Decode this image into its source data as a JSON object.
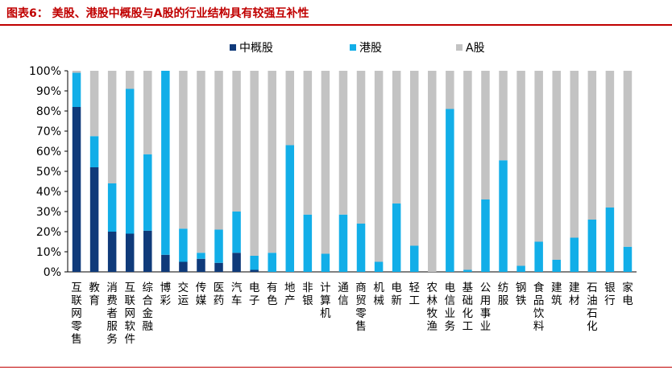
{
  "title": "图表6：  美股、港股中概股与A股的行业结构具有较强互补性",
  "colors": {
    "title": "#c00000",
    "cn_us": "#0f3a7a",
    "hk": "#12aee8",
    "a": "#c3c3c3"
  },
  "chart_data": {
    "type": "bar",
    "stacked": true,
    "ylim": [
      0,
      100
    ],
    "yticks": [
      "0%",
      "10%",
      "20%",
      "30%",
      "40%",
      "50%",
      "60%",
      "70%",
      "80%",
      "90%",
      "100%"
    ],
    "legend_position": "top",
    "categories": [
      "互联网零售",
      "教育",
      "消费者服务",
      "互联网软件",
      "综合金融",
      "博彩",
      "交运",
      "传媒",
      "医药",
      "汽车",
      "电子",
      "有色",
      "地产",
      "非银",
      "计算机",
      "通信",
      "商贸零售",
      "机械",
      "电新",
      "轻工",
      "农林牧渔",
      "电信业务",
      "基础化工",
      "公用事业",
      "纺服",
      "钢铁",
      "食品饮料",
      "建筑",
      "建材",
      "石油石化",
      "银行",
      "家电"
    ],
    "series": [
      {
        "name": "中概股",
        "values": [
          82,
          52,
          20,
          19,
          20.5,
          8.5,
          5,
          6.5,
          4.5,
          9.5,
          1,
          0,
          0,
          0,
          0,
          0,
          0,
          0,
          0,
          0,
          0,
          0,
          0,
          0,
          0,
          0,
          0,
          0,
          0,
          0,
          0,
          0
        ]
      },
      {
        "name": "港股",
        "values": [
          17,
          15.5,
          24,
          72,
          38,
          91.5,
          16.5,
          3,
          16.5,
          20.5,
          7,
          9.5,
          63,
          28.5,
          9,
          28.5,
          24,
          5,
          34,
          13,
          0,
          81,
          1,
          36,
          55.5,
          3,
          15,
          6,
          17,
          26,
          32,
          12.5
        ]
      },
      {
        "name": "A股",
        "values": [
          1,
          32.5,
          56,
          9,
          41.5,
          0,
          78.5,
          90.5,
          79,
          70,
          92,
          90.5,
          37,
          71.5,
          91,
          71.5,
          76,
          95,
          66,
          87,
          100,
          19,
          99,
          64,
          44.5,
          97,
          85,
          94,
          83,
          74,
          68,
          87.5
        ]
      }
    ]
  }
}
